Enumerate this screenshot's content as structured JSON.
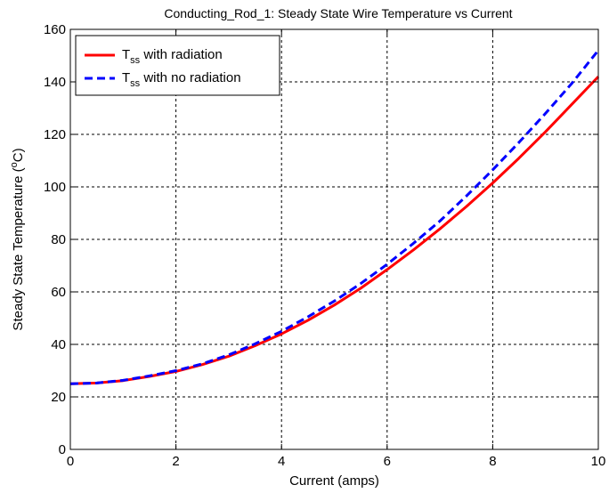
{
  "chart_data": {
    "type": "line",
    "title": "Conducting_Rod_1:  Steady State Wire Temperature vs Current",
    "xlabel": "Current (amps)",
    "ylabel": {
      "prefix": "Steady State Temperature (",
      "superscript": "o",
      "suffix": "C)"
    },
    "xlim": [
      0,
      10
    ],
    "ylim": [
      0,
      160
    ],
    "xticks": [
      0,
      2,
      4,
      6,
      8,
      10
    ],
    "yticks": [
      0,
      20,
      40,
      60,
      80,
      100,
      120,
      140,
      160
    ],
    "grid": true,
    "legend_position": "top-left",
    "series": [
      {
        "name": {
          "main": "T",
          "sub": "ss",
          "rest": " with radiation"
        },
        "color": "#ff0000",
        "style": "solid",
        "x": [
          0,
          0.5,
          1,
          1.5,
          2,
          2.5,
          3,
          3.5,
          4,
          4.5,
          5,
          5.5,
          6,
          6.5,
          7,
          7.5,
          8,
          8.5,
          9,
          9.5,
          10
        ],
        "y": [
          25,
          25.3,
          26.2,
          27.8,
          29.7,
          32.3,
          35.5,
          39.5,
          44,
          49.2,
          55,
          61.4,
          68.5,
          76,
          84,
          92.5,
          101.5,
          111,
          121,
          131.5,
          142
        ]
      },
      {
        "name": {
          "main": "T",
          "sub": "ss",
          "rest": " with no radiation"
        },
        "color": "#0000ff",
        "style": "dashed",
        "x": [
          0,
          0.5,
          1,
          1.5,
          2,
          2.5,
          3,
          3.5,
          4,
          4.5,
          5,
          5.5,
          6,
          6.5,
          7,
          7.5,
          8,
          8.5,
          9,
          9.5,
          10
        ],
        "y": [
          25,
          25.3,
          26.3,
          28,
          30,
          32.6,
          36,
          40.2,
          45,
          50.5,
          56.5,
          63.2,
          70.5,
          78.5,
          87,
          96.5,
          106.5,
          117,
          128,
          139.5,
          152
        ]
      }
    ]
  }
}
